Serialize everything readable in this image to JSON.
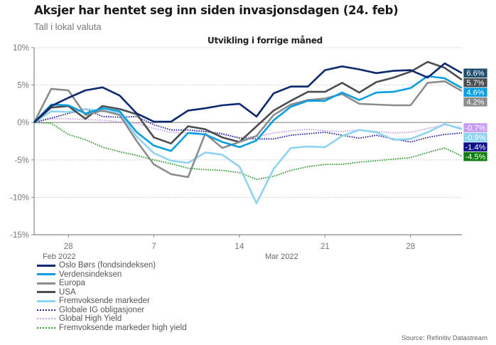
{
  "header": {
    "title": "Aksjer har hentet seg inn siden invasjonsdagen (24. feb)",
    "subtitle": "Tall i lokal valuta"
  },
  "source": "Source: Refinitiv Datastream",
  "chart_data": {
    "type": "line",
    "title": "Utvikling i forrige måned",
    "xlabel": "",
    "ylabel": "",
    "ylim": [
      -15,
      10
    ],
    "yticks": [
      10,
      5,
      0,
      -5,
      -10,
      -15
    ],
    "ytick_labels": [
      "10%",
      "5%",
      "0%",
      "-5%",
      "-10%",
      "-15%"
    ],
    "grid": true,
    "x": [
      "2022-02-24",
      "2022-02-25",
      "2022-02-28",
      "2022-03-01",
      "2022-03-02",
      "2022-03-03",
      "2022-03-04",
      "2022-03-07",
      "2022-03-08",
      "2022-03-09",
      "2022-03-10",
      "2022-03-11",
      "2022-03-14",
      "2022-03-15",
      "2022-03-16",
      "2022-03-17",
      "2022-03-18",
      "2022-03-21",
      "2022-03-22",
      "2022-03-23",
      "2022-03-24",
      "2022-03-25",
      "2022-03-28",
      "2022-03-29",
      "2022-03-30",
      "2022-03-31"
    ],
    "xticks": [
      {
        "index": 2,
        "label": "28"
      },
      {
        "index": 7,
        "label": "7"
      },
      {
        "index": 12,
        "label": "14"
      },
      {
        "index": 17,
        "label": "21"
      },
      {
        "index": 22,
        "label": "28"
      }
    ],
    "month_labels": [
      {
        "index": 1,
        "label": "Feb 2022"
      },
      {
        "index": 14,
        "label": "Mar 2022"
      }
    ],
    "legend_position": "bottom-left",
    "series": [
      {
        "name": "Oslo Børs (fondsindeksen)",
        "color": "#0b2a6f",
        "style": "solid",
        "width": 2.6,
        "end_label": "6.6%",
        "label_bg": "#1f4e6e",
        "values": [
          0,
          2.2,
          3.3,
          4.3,
          4.7,
          3.6,
          1.2,
          0.1,
          0.1,
          1.6,
          1.9,
          2.3,
          2.5,
          0.8,
          3.9,
          4.8,
          4.8,
          7.0,
          7.5,
          7.1,
          6.6,
          6.9,
          7.0,
          6.0,
          7.9,
          6.6
        ]
      },
      {
        "name": "Verdensindeksen",
        "color": "#0a9ee0",
        "style": "solid",
        "width": 2.6,
        "end_label": "4.6%",
        "label_bg": "#0a9ee0",
        "values": [
          0,
          2.4,
          2.3,
          1.2,
          1.9,
          1.5,
          -1.3,
          -3.1,
          -3.8,
          -1.4,
          -1.6,
          -2.6,
          -3.3,
          -2.4,
          0.3,
          2.1,
          2.9,
          2.9,
          4.0,
          3.0,
          4.0,
          4.1,
          4.6,
          6.2,
          5.9,
          4.6
        ]
      },
      {
        "name": "Europa",
        "color": "#8c8c8c",
        "style": "solid",
        "width": 2.6,
        "end_label": "4.2%",
        "label_bg": "#8c8c8c",
        "values": [
          0,
          4.5,
          4.3,
          1.0,
          1.6,
          1.0,
          -2.5,
          -5.6,
          -6.9,
          -7.3,
          -1.5,
          -3.4,
          -2.6,
          -1.8,
          1.0,
          2.4,
          3.0,
          3.2,
          3.8,
          2.5,
          2.4,
          2.3,
          2.3,
          5.3,
          5.5,
          4.2
        ]
      },
      {
        "name": "USA",
        "color": "#4a4d52",
        "style": "solid",
        "width": 2.6,
        "end_label": "5.7%",
        "label_bg": "#4a4d52",
        "values": [
          0,
          2.0,
          2.2,
          0.5,
          2.2,
          1.8,
          1.1,
          -2.0,
          -2.8,
          -0.5,
          -0.9,
          -2.0,
          -2.6,
          -0.5,
          1.6,
          2.9,
          4.1,
          4.1,
          5.3,
          4.0,
          5.4,
          6.0,
          6.8,
          8.1,
          7.3,
          5.7
        ]
      },
      {
        "name": "Fremvoksende markeder",
        "color": "#8fd3f2",
        "style": "solid",
        "width": 2.6,
        "end_label": "-0.9%",
        "label_bg": "#8fd3f2",
        "values": [
          0,
          1.5,
          1.4,
          1.8,
          1.5,
          1.3,
          -1.9,
          -4.1,
          -5.1,
          -5.4,
          -4.0,
          -4.3,
          -5.9,
          -10.8,
          -6.2,
          -3.4,
          -3.2,
          -3.3,
          -1.8,
          -1.0,
          -1.3,
          -2.3,
          -2.2,
          -1.3,
          -0.2,
          -0.9
        ]
      },
      {
        "name": "Globale IG obligasjoner",
        "color": "#1f1f9c",
        "style": "dotted",
        "width": 1.8,
        "end_label": "-1.4%",
        "label_bg": "#10108a",
        "values": [
          0,
          0.6,
          1.2,
          1.8,
          0.8,
          0.7,
          0.8,
          -0.3,
          -1.0,
          -1.0,
          -1.2,
          -1.5,
          -2.1,
          -2.2,
          -2.2,
          -1.7,
          -1.5,
          -1.3,
          -1.7,
          -2.1,
          -1.7,
          -2.2,
          -2.6,
          -2.0,
          -1.6,
          -1.4
        ]
      },
      {
        "name": "Global High Yield",
        "color": "#c89cf0",
        "style": "dotted",
        "width": 1.8,
        "end_label": "-0.7%",
        "label_bg": "#c79ef2",
        "values": [
          0,
          0.5,
          0.5,
          0.4,
          0.3,
          0.1,
          -0.1,
          -0.8,
          -1.3,
          -1.4,
          -1.2,
          -1.6,
          -2.0,
          -1.9,
          -1.4,
          -1.1,
          -0.9,
          -1.1,
          -1.2,
          -1.0,
          -1.2,
          -1.4,
          -1.3,
          -0.8,
          -0.3,
          -0.7
        ]
      },
      {
        "name": "Fremvoksende markeder high yield",
        "color": "#2a9a2a",
        "style": "dotted",
        "width": 1.8,
        "end_label": "-4.5%",
        "label_bg": "#0f7d0f",
        "values": [
          0,
          -0.1,
          -1.6,
          -2.3,
          -3.3,
          -3.9,
          -4.4,
          -5.0,
          -5.5,
          -6.1,
          -6.3,
          -6.4,
          -6.7,
          -7.6,
          -7.2,
          -6.4,
          -5.9,
          -5.6,
          -5.6,
          -5.3,
          -5.1,
          -4.9,
          -4.7,
          -4.0,
          -3.4,
          -4.5
        ]
      }
    ]
  }
}
